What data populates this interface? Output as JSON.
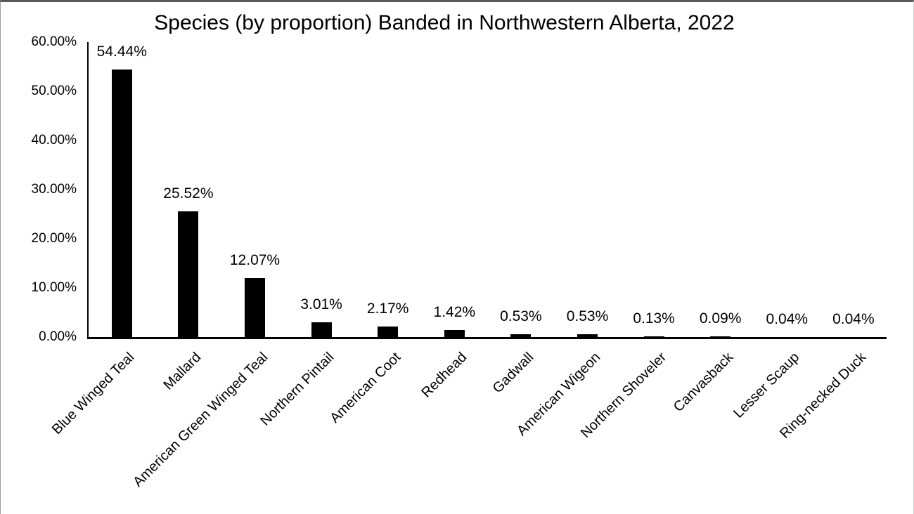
{
  "chart_data": {
    "type": "bar",
    "title": "Species (by proportion) Banded in Northwestern Alberta, 2022",
    "categories": [
      "Blue Winged Teal",
      "Mallard",
      "American Green Winged Teal",
      "Northern Pintail",
      "American Coot",
      "Redhead",
      "Gadwall",
      "American Wigeon",
      "Northern Shoveler",
      "Canvasback",
      "Lesser Scaup",
      "Ring-necked Duck"
    ],
    "values": [
      54.44,
      25.52,
      12.07,
      3.01,
      2.17,
      1.42,
      0.53,
      0.53,
      0.13,
      0.09,
      0.04,
      0.04
    ],
    "value_labels": [
      "54.44%",
      "25.52%",
      "12.07%",
      "3.01%",
      "2.17%",
      "1.42%",
      "0.53%",
      "0.53%",
      "0.13%",
      "0.09%",
      "0.04%",
      "0.04%"
    ],
    "xlabel": "",
    "ylabel": "",
    "ylim": [
      0,
      60
    ],
    "y_ticks": [
      {
        "label": "0.00%",
        "value": 0
      },
      {
        "label": "10.00%",
        "value": 10
      },
      {
        "label": "20.00%",
        "value": 20
      },
      {
        "label": "30.00%",
        "value": 30
      },
      {
        "label": "40.00%",
        "value": 40
      },
      {
        "label": "50.00%",
        "value": 50
      },
      {
        "label": "60.00%",
        "value": 60
      }
    ],
    "grid": false,
    "legend": null,
    "bar_color": "#000000",
    "axis_color": "#000000",
    "text_color": "#000000",
    "background": "#ffffff"
  }
}
